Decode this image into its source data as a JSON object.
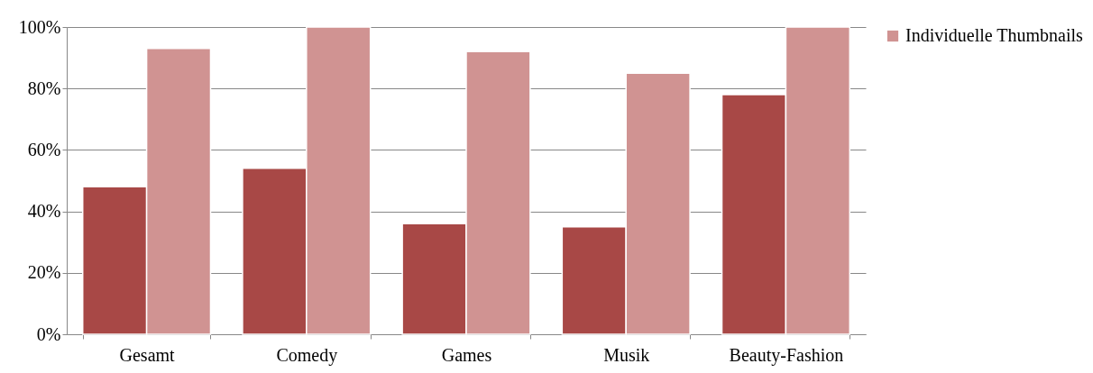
{
  "chart_data": {
    "type": "bar",
    "categories": [
      "Gesamt",
      "Comedy",
      "Games",
      "Musik",
      "Beauty-Fashion"
    ],
    "series": [
      {
        "color": "#a84846",
        "values": [
          48,
          54,
          36,
          35,
          78
        ]
      },
      {
        "name": "Individuelle Thumbnails",
        "color": "#d09392",
        "values": [
          93,
          100,
          92,
          85,
          100
        ]
      }
    ],
    "ylim": [
      0,
      100
    ],
    "yticks": [
      {
        "value": 0,
        "label": "0%"
      },
      {
        "value": 20,
        "label": "20%"
      },
      {
        "value": 40,
        "label": "40%"
      },
      {
        "value": 60,
        "label": "60%"
      },
      {
        "value": 80,
        "label": "80%"
      },
      {
        "value": 100,
        "label": "100%"
      }
    ],
    "grid": "y",
    "legend": "right"
  }
}
